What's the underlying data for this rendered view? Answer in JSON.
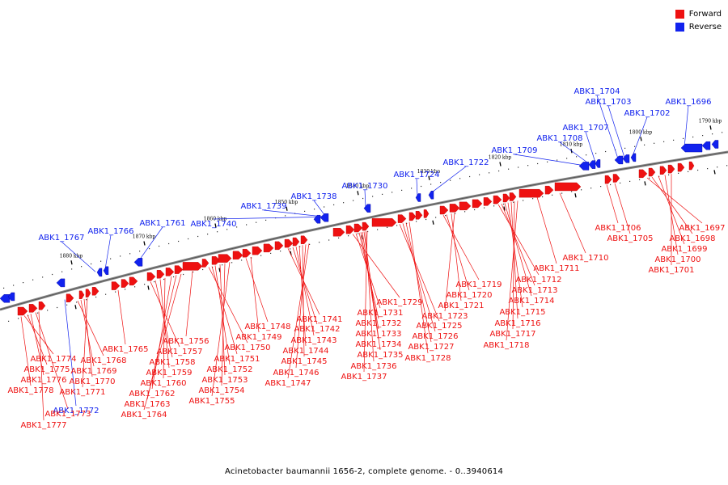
{
  "colors": {
    "forward": "#ee1111",
    "reverse": "#1122ee",
    "backbone": "#888888"
  },
  "legend": {
    "forward_label": "Forward",
    "reverse_label": "Reverse"
  },
  "caption": "Acinetobacter baumannii 1656-2, complete genome. - 0..3940614",
  "ticks": [
    "1880 kbp",
    "1870 kbp",
    "1860 kbp",
    "1850 kbp",
    "1840 kbp",
    "1830 kbp",
    "1820 kbp",
    "1810 kbp",
    "1800 kbp",
    "1790 kbp"
  ],
  "reverse_genes": [
    "ABK1_1767",
    "ABK1_1766",
    "ABK1_1761",
    "ABK1_1740",
    "ABK1_1739",
    "ABK1_1738",
    "ABK1_1730",
    "ABK1_1724",
    "ABK1_1722",
    "ABK1_1709",
    "ABK1_1708",
    "ABK1_1707",
    "ABK1_1704",
    "ABK1_1703",
    "ABK1_1702",
    "ABK1_1696",
    "ABK1_1772"
  ],
  "forward_genes": [
    "ABK1_1774",
    "ABK1_1775",
    "ABK1_1776",
    "ABK1_1778",
    "ABK1_1773",
    "ABK1_1777",
    "ABK1_1768",
    "ABK1_1769",
    "ABK1_1770",
    "ABK1_1771",
    "ABK1_1765",
    "ABK1_1757",
    "ABK1_1758",
    "ABK1_1759",
    "ABK1_1760",
    "ABK1_1762",
    "ABK1_1763",
    "ABK1_1764",
    "ABK1_1756",
    "ABK1_1750",
    "ABK1_1751",
    "ABK1_1752",
    "ABK1_1753",
    "ABK1_1754",
    "ABK1_1755",
    "ABK1_1748",
    "ABK1_1749",
    "ABK1_1741",
    "ABK1_1742",
    "ABK1_1743",
    "ABK1_1744",
    "ABK1_1745",
    "ABK1_1746",
    "ABK1_1747",
    "ABK1_1729",
    "ABK1_1731",
    "ABK1_1732",
    "ABK1_1733",
    "ABK1_1734",
    "ABK1_1735",
    "ABK1_1736",
    "ABK1_1737",
    "ABK1_1725",
    "ABK1_1726",
    "ABK1_1727",
    "ABK1_1728",
    "ABK1_1719",
    "ABK1_1720",
    "ABK1_1721",
    "ABK1_1723",
    "ABK1_1712",
    "ABK1_1713",
    "ABK1_1714",
    "ABK1_1715",
    "ABK1_1716",
    "ABK1_1717",
    "ABK1_1718",
    "ABK1_1711",
    "ABK1_1710",
    "ABK1_1706",
    "ABK1_1705",
    "ABK1_1697",
    "ABK1_1698",
    "ABK1_1699",
    "ABK1_1700",
    "ABK1_1701"
  ]
}
